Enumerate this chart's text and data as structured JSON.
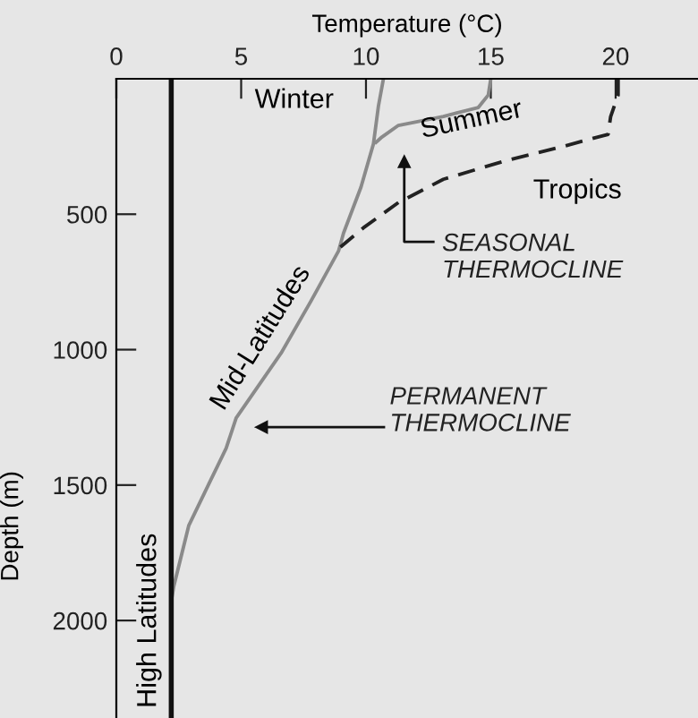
{
  "chart_data": {
    "type": "line",
    "xlabel": "Temperature (°C)",
    "ylabel": "Depth (m)",
    "xlim": [
      0,
      23.3
    ],
    "xticks": [
      0,
      5,
      10,
      15,
      20
    ],
    "ylim": [
      2360,
      0
    ],
    "yticks": [
      500,
      1000,
      1500,
      2000
    ],
    "grid": false,
    "legend": false,
    "marker": "none",
    "series": [
      {
        "name": "Winter",
        "color": "#8a8a8a",
        "line_style": "solid",
        "x": [
          10.7,
          10.5,
          10.3,
          9.8,
          9.1,
          8.9,
          7.8,
          6.6,
          4.8,
          4.4,
          3.7,
          2.9,
          2.3,
          2.2
        ],
        "values": [
          0,
          100,
          240,
          400,
          570,
          636,
          820,
          1013,
          1252,
          1364,
          1497,
          1650,
          1874,
          1930
        ]
      },
      {
        "name": "Summer",
        "color": "#8a8a8a",
        "line_style": "solid",
        "x": [
          15.0,
          14.9,
          14.5,
          13.1,
          11.3,
          10.6,
          10.4
        ],
        "values": [
          0,
          60,
          106,
          139,
          172,
          218,
          235
        ]
      },
      {
        "name": "Tropics",
        "color": "#222222",
        "line_style": "dashed",
        "x": [
          20.1,
          20.1,
          19.8,
          19.7,
          17.8,
          15.5,
          13.1,
          11.3,
          9.9,
          8.95
        ],
        "values": [
          0,
          60,
          140,
          205,
          252,
          305,
          371,
          457,
          550,
          623
        ]
      },
      {
        "name": "High Latitudes",
        "color": "#111111",
        "line_style": "solid",
        "x": [
          2.2,
          2.2
        ],
        "values": [
          0,
          2360
        ]
      }
    ],
    "annotations": [
      "SEASONAL\nTHERMOCLINE",
      "PERMANENT\nTHERMOCLINE",
      {
        "text": "Mid-Latitudes",
        "x": 6.6,
        "y": 1013
      }
    ]
  }
}
